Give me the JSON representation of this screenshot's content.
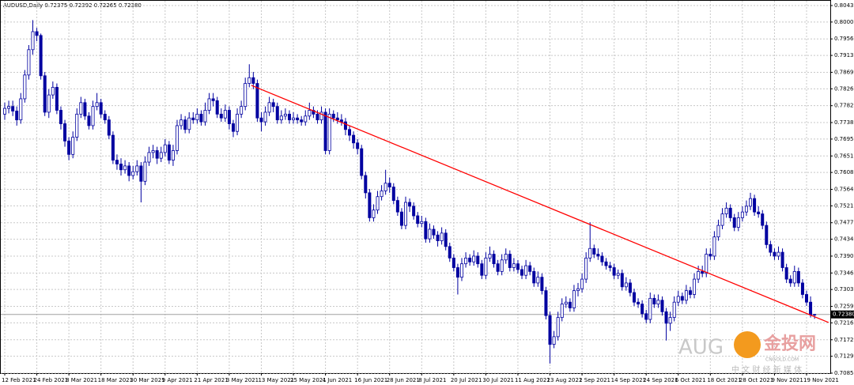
{
  "chart_data": {
    "type": "candlestick",
    "title": "AUDUSD,Daily  0.72375 0.72392 0.72265 0.72380",
    "color": "#0000a0",
    "up_fill": "#ffffff",
    "down_fill": "#0000a0",
    "grid": true,
    "categories": [
      "12 Feb 2021",
      null,
      null,
      null,
      null,
      null,
      null,
      null,
      "24 Feb 2021",
      null,
      null,
      null,
      null,
      null,
      null,
      null,
      "8 Mar 2021",
      null,
      null,
      null,
      null,
      null,
      null,
      null,
      "18 Mar 2021",
      null,
      null,
      null,
      null,
      null,
      null,
      null,
      "30 Mar 2021",
      null,
      null,
      null,
      null,
      null,
      null,
      null,
      "9 Apr 2021",
      null,
      null,
      null,
      null,
      null,
      null,
      null,
      "21 Apr 2021",
      null,
      null,
      null,
      null,
      null,
      null,
      null,
      "3 May 2021",
      null,
      null,
      null,
      null,
      null,
      null,
      null,
      "13 May 2021",
      null,
      null,
      null,
      null,
      null,
      null,
      null,
      "25 May 2021",
      null,
      null,
      null,
      null,
      null,
      null,
      null,
      "4 Jun 2021",
      null,
      null,
      null,
      null,
      null,
      null,
      null,
      "16 Jun 2021",
      null,
      null,
      null,
      null,
      null,
      null,
      null,
      "28 Jun 2021",
      null,
      null,
      null,
      null,
      null,
      null,
      null,
      "8 Jul 2021",
      null,
      null,
      null,
      null,
      null,
      null,
      null,
      "20 Jul 2021",
      null,
      null,
      null,
      null,
      null,
      null,
      null,
      "30 Jul 2021",
      null,
      null,
      null,
      null,
      null,
      null,
      null,
      "11 Aug 2021",
      null,
      null,
      null,
      null,
      null,
      null,
      null,
      "23 Aug 2021",
      null,
      null,
      null,
      null,
      null,
      null,
      null,
      "2 Sep 2021",
      null,
      null,
      null,
      null,
      null,
      null,
      null,
      "14 Sep 2021",
      null,
      null,
      null,
      null,
      null,
      null,
      null,
      "24 Sep 2021",
      null,
      null,
      null,
      null,
      null,
      null,
      null,
      "6 Oct 2021",
      null,
      null,
      null,
      null,
      null,
      null,
      null,
      "18 Oct 2021",
      null,
      null,
      null,
      null,
      null,
      null,
      null,
      "28 Oct 2021",
      null,
      null,
      null,
      null,
      null,
      null,
      null,
      "9 Nov 2021",
      null,
      null,
      null,
      null,
      null,
      null,
      null,
      "19 Nov 2021",
      null,
      null
    ],
    "open": [
      0.776,
      0.7775,
      0.778,
      0.7768,
      0.7745,
      0.78,
      0.7862,
      0.7928,
      0.7975,
      0.7965,
      0.786,
      0.7765,
      0.781,
      0.783,
      0.777,
      0.7735,
      0.769,
      0.7655,
      0.77,
      0.776,
      0.779,
      0.7755,
      0.773,
      0.778,
      0.779,
      0.776,
      0.7745,
      0.7705,
      0.764,
      0.763,
      0.7615,
      0.7625,
      0.76,
      0.761,
      0.7625,
      0.7585,
      0.7635,
      0.766,
      0.7665,
      0.7645,
      0.766,
      0.768,
      0.764,
      0.7665,
      0.773,
      0.7745,
      0.772,
      0.775,
      0.7745,
      0.776,
      0.774,
      0.777,
      0.78,
      0.7795,
      0.776,
      0.775,
      0.777,
      0.7735,
      0.7715,
      0.776,
      0.778,
      0.784,
      0.7855,
      0.784,
      0.775,
      0.774,
      0.7765,
      0.779,
      0.778,
      0.7745,
      0.7755,
      0.776,
      0.7745,
      0.775,
      0.7745,
      0.774,
      0.7755,
      0.777,
      0.776,
      0.7745,
      0.7765,
      0.7665,
      0.776,
      0.775,
      0.7745,
      0.774,
      0.772,
      0.7705,
      0.7685,
      0.767,
      0.76,
      0.7555,
      0.749,
      0.751,
      0.7545,
      0.756,
      0.758,
      0.757,
      0.7535,
      0.7505,
      0.747,
      0.753,
      0.752,
      0.7495,
      0.7475,
      0.748,
      0.7435,
      0.746,
      0.7445,
      0.743,
      0.745,
      0.7415,
      0.7385,
      0.736,
      0.7335,
      0.737,
      0.7385,
      0.7375,
      0.739,
      0.737,
      0.734,
      0.7385,
      0.7395,
      0.737,
      0.735,
      0.738,
      0.7395,
      0.736,
      0.737,
      0.7355,
      0.734,
      0.7365,
      0.735,
      0.732,
      0.7335,
      0.73,
      0.7235,
      0.716,
      0.718,
      0.723,
      0.7265,
      0.727,
      0.7255,
      0.73,
      0.7305,
      0.733,
      0.7385,
      0.741,
      0.7395,
      0.739,
      0.7375,
      0.7365,
      0.736,
      0.734,
      0.7345,
      0.731,
      0.732,
      0.7295,
      0.727,
      0.7265,
      0.724,
      0.7225,
      0.728,
      0.7265,
      0.7275,
      0.7245,
      0.7215,
      0.723,
      0.727,
      0.7285,
      0.7275,
      0.73,
      0.729,
      0.733,
      0.735,
      0.7345,
      0.7395,
      0.739,
      0.744,
      0.747,
      0.75,
      0.7515,
      0.749,
      0.7465,
      0.749,
      0.7505,
      0.752,
      0.754,
      0.7505,
      0.75,
      0.747,
      0.742,
      0.74,
      0.739,
      0.74,
      0.736,
      0.733,
      0.732,
      0.735,
      0.732,
      0.729,
      0.727,
      0.72375
    ],
    "high": [
      0.779,
      0.7795,
      0.7795,
      0.778,
      0.7815,
      0.7875,
      0.794,
      0.8005,
      0.7985,
      0.797,
      0.787,
      0.7825,
      0.7845,
      0.784,
      0.778,
      0.7745,
      0.77,
      0.7715,
      0.7775,
      0.7805,
      0.78,
      0.7765,
      0.7795,
      0.7815,
      0.78,
      0.777,
      0.7755,
      0.7715,
      0.7655,
      0.7645,
      0.764,
      0.7635,
      0.7625,
      0.764,
      0.7635,
      0.765,
      0.7675,
      0.768,
      0.7675,
      0.7675,
      0.7695,
      0.769,
      0.768,
      0.7745,
      0.776,
      0.7755,
      0.7765,
      0.7765,
      0.7775,
      0.777,
      0.779,
      0.7815,
      0.7815,
      0.7805,
      0.7775,
      0.7785,
      0.778,
      0.7745,
      0.7775,
      0.7795,
      0.7855,
      0.789,
      0.787,
      0.785,
      0.7765,
      0.778,
      0.7805,
      0.78,
      0.779,
      0.777,
      0.7775,
      0.777,
      0.7765,
      0.776,
      0.7755,
      0.777,
      0.779,
      0.778,
      0.777,
      0.778,
      0.7775,
      0.7775,
      0.777,
      0.7765,
      0.776,
      0.775,
      0.773,
      0.7715,
      0.7695,
      0.768,
      0.761,
      0.7565,
      0.7525,
      0.756,
      0.7575,
      0.7615,
      0.7595,
      0.758,
      0.7545,
      0.7515,
      0.7545,
      0.754,
      0.753,
      0.7505,
      0.7495,
      0.749,
      0.7475,
      0.747,
      0.7455,
      0.7465,
      0.746,
      0.7425,
      0.7395,
      0.737,
      0.7385,
      0.74,
      0.7395,
      0.7405,
      0.74,
      0.738,
      0.74,
      0.7415,
      0.7405,
      0.738,
      0.7395,
      0.741,
      0.7405,
      0.7385,
      0.738,
      0.7365,
      0.738,
      0.7375,
      0.736,
      0.735,
      0.7345,
      0.731,
      0.7245,
      0.7195,
      0.7245,
      0.728,
      0.7285,
      0.728,
      0.7315,
      0.732,
      0.7345,
      0.74,
      0.7478,
      0.742,
      0.741,
      0.74,
      0.7385,
      0.7375,
      0.737,
      0.7355,
      0.7355,
      0.7335,
      0.733,
      0.7305,
      0.728,
      0.7275,
      0.725,
      0.7295,
      0.729,
      0.729,
      0.7285,
      0.7255,
      0.7245,
      0.7285,
      0.73,
      0.7295,
      0.7315,
      0.731,
      0.7345,
      0.7365,
      0.7365,
      0.741,
      0.741,
      0.7455,
      0.7485,
      0.7515,
      0.753,
      0.7525,
      0.75,
      0.7505,
      0.752,
      0.7535,
      0.7555,
      0.755,
      0.752,
      0.751,
      0.748,
      0.743,
      0.741,
      0.7415,
      0.741,
      0.737,
      0.734,
      0.7365,
      0.736,
      0.733,
      0.73,
      0.7285,
      0.72392
    ],
    "low": [
      0.7745,
      0.7762,
      0.7755,
      0.773,
      0.7735,
      0.779,
      0.785,
      0.7915,
      0.795,
      0.785,
      0.7755,
      0.775,
      0.78,
      0.776,
      0.772,
      0.7675,
      0.764,
      0.7645,
      0.769,
      0.775,
      0.7745,
      0.772,
      0.772,
      0.777,
      0.775,
      0.7735,
      0.7695,
      0.763,
      0.7615,
      0.76,
      0.7605,
      0.7585,
      0.759,
      0.76,
      0.753,
      0.7575,
      0.7625,
      0.7645,
      0.763,
      0.7635,
      0.765,
      0.763,
      0.7625,
      0.7655,
      0.772,
      0.771,
      0.771,
      0.7735,
      0.7735,
      0.773,
      0.773,
      0.776,
      0.778,
      0.775,
      0.774,
      0.774,
      0.772,
      0.77,
      0.7705,
      0.775,
      0.777,
      0.783,
      0.7825,
      0.774,
      0.7715,
      0.773,
      0.7755,
      0.7765,
      0.7735,
      0.7735,
      0.7745,
      0.7735,
      0.7735,
      0.7735,
      0.773,
      0.773,
      0.7745,
      0.775,
      0.7735,
      0.7735,
      0.7655,
      0.7655,
      0.774,
      0.7735,
      0.773,
      0.7705,
      0.769,
      0.767,
      0.7655,
      0.759,
      0.754,
      0.748,
      0.748,
      0.75,
      0.7535,
      0.755,
      0.7555,
      0.7525,
      0.7495,
      0.746,
      0.746,
      0.7505,
      0.7485,
      0.7465,
      0.7465,
      0.7425,
      0.7425,
      0.7435,
      0.7415,
      0.742,
      0.7405,
      0.7375,
      0.735,
      0.729,
      0.7325,
      0.736,
      0.7365,
      0.7365,
      0.736,
      0.733,
      0.733,
      0.7375,
      0.736,
      0.734,
      0.734,
      0.737,
      0.735,
      0.735,
      0.7345,
      0.733,
      0.733,
      0.734,
      0.731,
      0.731,
      0.729,
      0.7225,
      0.711,
      0.715,
      0.717,
      0.722,
      0.7255,
      0.7245,
      0.7245,
      0.7285,
      0.7295,
      0.732,
      0.7375,
      0.7385,
      0.738,
      0.7365,
      0.7355,
      0.735,
      0.733,
      0.733,
      0.73,
      0.73,
      0.7285,
      0.726,
      0.7255,
      0.723,
      0.7215,
      0.7215,
      0.7255,
      0.7255,
      0.7235,
      0.717,
      0.7195,
      0.722,
      0.726,
      0.7265,
      0.7265,
      0.728,
      0.728,
      0.732,
      0.7335,
      0.7335,
      0.738,
      0.738,
      0.743,
      0.746,
      0.749,
      0.748,
      0.7455,
      0.7455,
      0.748,
      0.7495,
      0.751,
      0.7495,
      0.749,
      0.746,
      0.741,
      0.739,
      0.738,
      0.738,
      0.735,
      0.732,
      0.731,
      0.731,
      0.731,
      0.728,
      0.726,
      0.723,
      0.72265
    ],
    "close": [
      0.7775,
      0.778,
      0.7768,
      0.7745,
      0.78,
      0.7862,
      0.7928,
      0.7975,
      0.7965,
      0.786,
      0.7765,
      0.781,
      0.783,
      0.777,
      0.7735,
      0.769,
      0.7655,
      0.77,
      0.776,
      0.779,
      0.7755,
      0.773,
      0.778,
      0.779,
      0.776,
      0.7745,
      0.7705,
      0.764,
      0.763,
      0.7615,
      0.7625,
      0.76,
      0.761,
      0.7625,
      0.7585,
      0.7635,
      0.766,
      0.7665,
      0.7645,
      0.766,
      0.768,
      0.764,
      0.7665,
      0.773,
      0.7745,
      0.772,
      0.775,
      0.7745,
      0.776,
      0.774,
      0.777,
      0.78,
      0.7795,
      0.776,
      0.775,
      0.777,
      0.7735,
      0.7715,
      0.776,
      0.778,
      0.784,
      0.7855,
      0.784,
      0.775,
      0.774,
      0.7765,
      0.779,
      0.778,
      0.7745,
      0.7755,
      0.776,
      0.7745,
      0.775,
      0.7745,
      0.774,
      0.7755,
      0.777,
      0.776,
      0.7745,
      0.7765,
      0.7665,
      0.776,
      0.775,
      0.7745,
      0.774,
      0.772,
      0.7705,
      0.7685,
      0.767,
      0.76,
      0.7555,
      0.749,
      0.751,
      0.7545,
      0.756,
      0.758,
      0.757,
      0.7535,
      0.7505,
      0.747,
      0.753,
      0.752,
      0.7495,
      0.7475,
      0.748,
      0.7435,
      0.746,
      0.7445,
      0.743,
      0.745,
      0.7415,
      0.7385,
      0.736,
      0.7335,
      0.737,
      0.7385,
      0.7375,
      0.739,
      0.737,
      0.734,
      0.7385,
      0.7395,
      0.737,
      0.735,
      0.738,
      0.7395,
      0.736,
      0.737,
      0.7355,
      0.734,
      0.7365,
      0.735,
      0.732,
      0.7335,
      0.73,
      0.7235,
      0.716,
      0.718,
      0.723,
      0.7265,
      0.727,
      0.7255,
      0.73,
      0.7305,
      0.733,
      0.7385,
      0.741,
      0.7395,
      0.739,
      0.7375,
      0.7365,
      0.736,
      0.734,
      0.7345,
      0.731,
      0.732,
      0.7295,
      0.727,
      0.7265,
      0.724,
      0.7225,
      0.728,
      0.7265,
      0.7275,
      0.7245,
      0.7215,
      0.723,
      0.727,
      0.7285,
      0.7275,
      0.73,
      0.729,
      0.733,
      0.735,
      0.7345,
      0.7395,
      0.739,
      0.744,
      0.747,
      0.75,
      0.7515,
      0.749,
      0.7465,
      0.749,
      0.7505,
      0.752,
      0.754,
      0.7505,
      0.75,
      0.747,
      0.742,
      0.74,
      0.739,
      0.74,
      0.736,
      0.733,
      0.732,
      0.735,
      0.732,
      0.729,
      0.727,
      0.7237,
      0.7238
    ],
    "ylim": [
      0.7085,
      0.8043
    ],
    "yticks": [
      {
        "value": 0.8043,
        "label": "0.80430"
      },
      {
        "value": 0.8,
        "label": "0.80000"
      },
      {
        "value": 0.7956,
        "label": "0.79560"
      },
      {
        "value": 0.7913,
        "label": "0.79130"
      },
      {
        "value": 0.7869,
        "label": "0.78690"
      },
      {
        "value": 0.7826,
        "label": "0.78260"
      },
      {
        "value": 0.7782,
        "label": "0.77820"
      },
      {
        "value": 0.7738,
        "label": "0.77380"
      },
      {
        "value": 0.7695,
        "label": "0.76950"
      },
      {
        "value": 0.7651,
        "label": "0.76510"
      },
      {
        "value": 0.7608,
        "label": "0.76080"
      },
      {
        "value": 0.7564,
        "label": "0.75640"
      },
      {
        "value": 0.7521,
        "label": "0.75210"
      },
      {
        "value": 0.7477,
        "label": "0.74770"
      },
      {
        "value": 0.7434,
        "label": "0.74340"
      },
      {
        "value": 0.739,
        "label": "0.73900"
      },
      {
        "value": 0.7346,
        "label": "0.73460"
      },
      {
        "value": 0.7303,
        "label": "0.73030"
      },
      {
        "value": 0.7259,
        "label": "0.72590"
      },
      {
        "value": 0.7216,
        "label": "0.72160"
      },
      {
        "value": 0.7172,
        "label": "0.71720"
      },
      {
        "value": 0.7129,
        "label": "0.71290"
      },
      {
        "value": 0.7085,
        "label": "0.70850"
      }
    ],
    "last_price": {
      "value": 0.7238,
      "label": "0.72380"
    },
    "trendline": {
      "color": "#ff0000",
      "x": [
        61.5,
        205.5
      ],
      "y": [
        0.7835,
        0.7217
      ]
    },
    "watermark": {
      "text": "AUG",
      "brand": "金投网",
      "domain": "CNGOLD.COM",
      "slogan": "中 文 财 经 新 媒 体"
    }
  }
}
